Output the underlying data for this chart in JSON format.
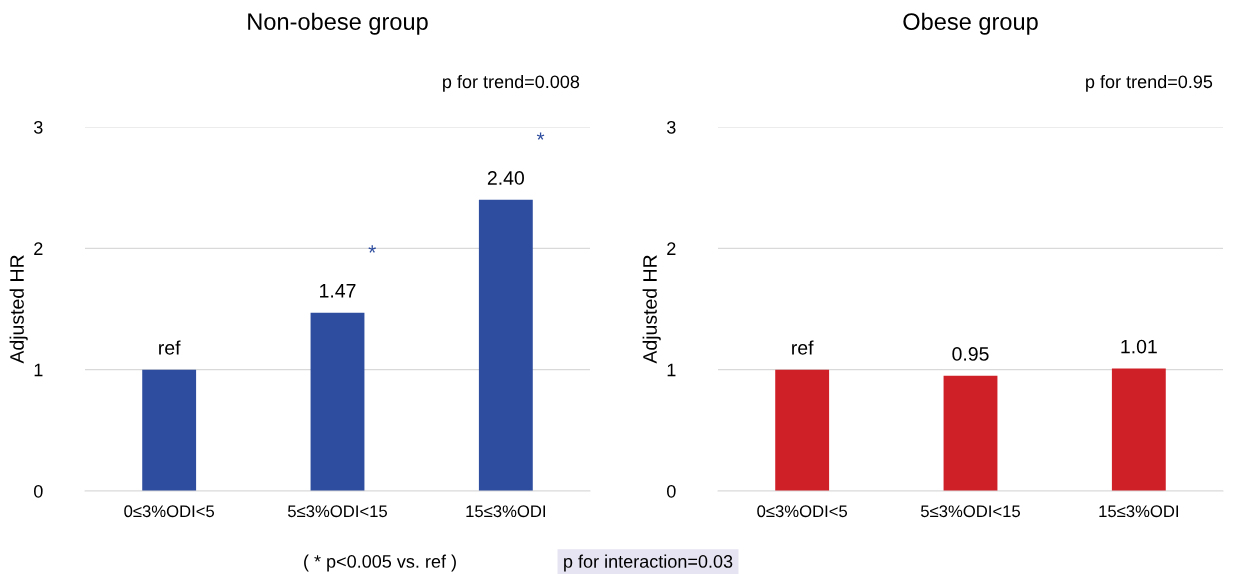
{
  "chart_data": [
    {
      "type": "bar",
      "title": "Non-obese group",
      "ylabel": "Adjusted HR",
      "categories": [
        "0≤3%ODI<5",
        "5≤3%ODI<15",
        "15≤3%ODI"
      ],
      "series": [
        {
          "color": "#2e4d9e",
          "values": [
            1,
            1.47,
            2.4
          ],
          "value_labels": [
            "ref",
            "1.47",
            "2.40"
          ]
        }
      ],
      "ylim": [
        0,
        3
      ],
      "yticks": [
        0,
        1,
        2,
        3
      ],
      "grid": "y",
      "legend": false,
      "annotations": [
        "p for trend=0.008",
        "*",
        "*",
        "( * p<0.005 vs. ref )"
      ]
    },
    {
      "type": "bar",
      "title": "Obese group",
      "ylabel": "Adjusted HR",
      "categories": [
        "0≤3%ODI<5",
        "5≤3%ODI<15",
        "15≤3%ODI"
      ],
      "series": [
        {
          "color": "#d02027",
          "values": [
            1,
            0.95,
            1.01
          ],
          "value_labels": [
            "ref",
            "0.95",
            "1.01"
          ]
        }
      ],
      "ylim": [
        0,
        3
      ],
      "yticks": [
        0,
        1,
        2,
        3
      ],
      "grid": "y",
      "legend": false,
      "annotations": [
        "p for trend=0.95",
        "p for interaction=0.03"
      ]
    }
  ]
}
